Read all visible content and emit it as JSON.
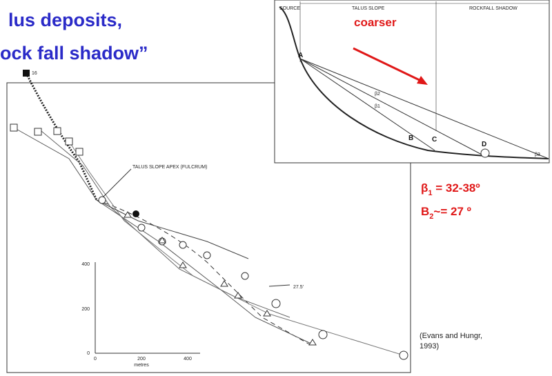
{
  "title": {
    "line1": "lus deposits,",
    "line2": "ock fall shadow”"
  },
  "profile_diagram": {
    "zones": [
      "SOURCE",
      "TALUS SLOPE",
      "ROCKFALL SHADOW"
    ],
    "points": [
      "A",
      "B",
      "C",
      "D"
    ],
    "angles": [
      "β2",
      "β1",
      "β3"
    ],
    "annotation": "coarser"
  },
  "talus_plot": {
    "start_label": "16",
    "apex_label": "TALUS SLOPE APEX (FULCRUM)",
    "angle_label": "27.5'",
    "axis_label": "metres",
    "y_ticks": [
      "400",
      "200",
      "0"
    ],
    "x_ticks": [
      "0",
      "200",
      "400"
    ]
  },
  "angles": {
    "beta1": {
      "symbol": "β",
      "subscript": "1",
      "text": " = 32-38º"
    },
    "beta2": {
      "symbol": "B",
      "subscript": "2",
      "text": "~= 27 º"
    }
  },
  "citation": {
    "line1": "(Evans and Hungr,",
    "line2": "1993)"
  }
}
